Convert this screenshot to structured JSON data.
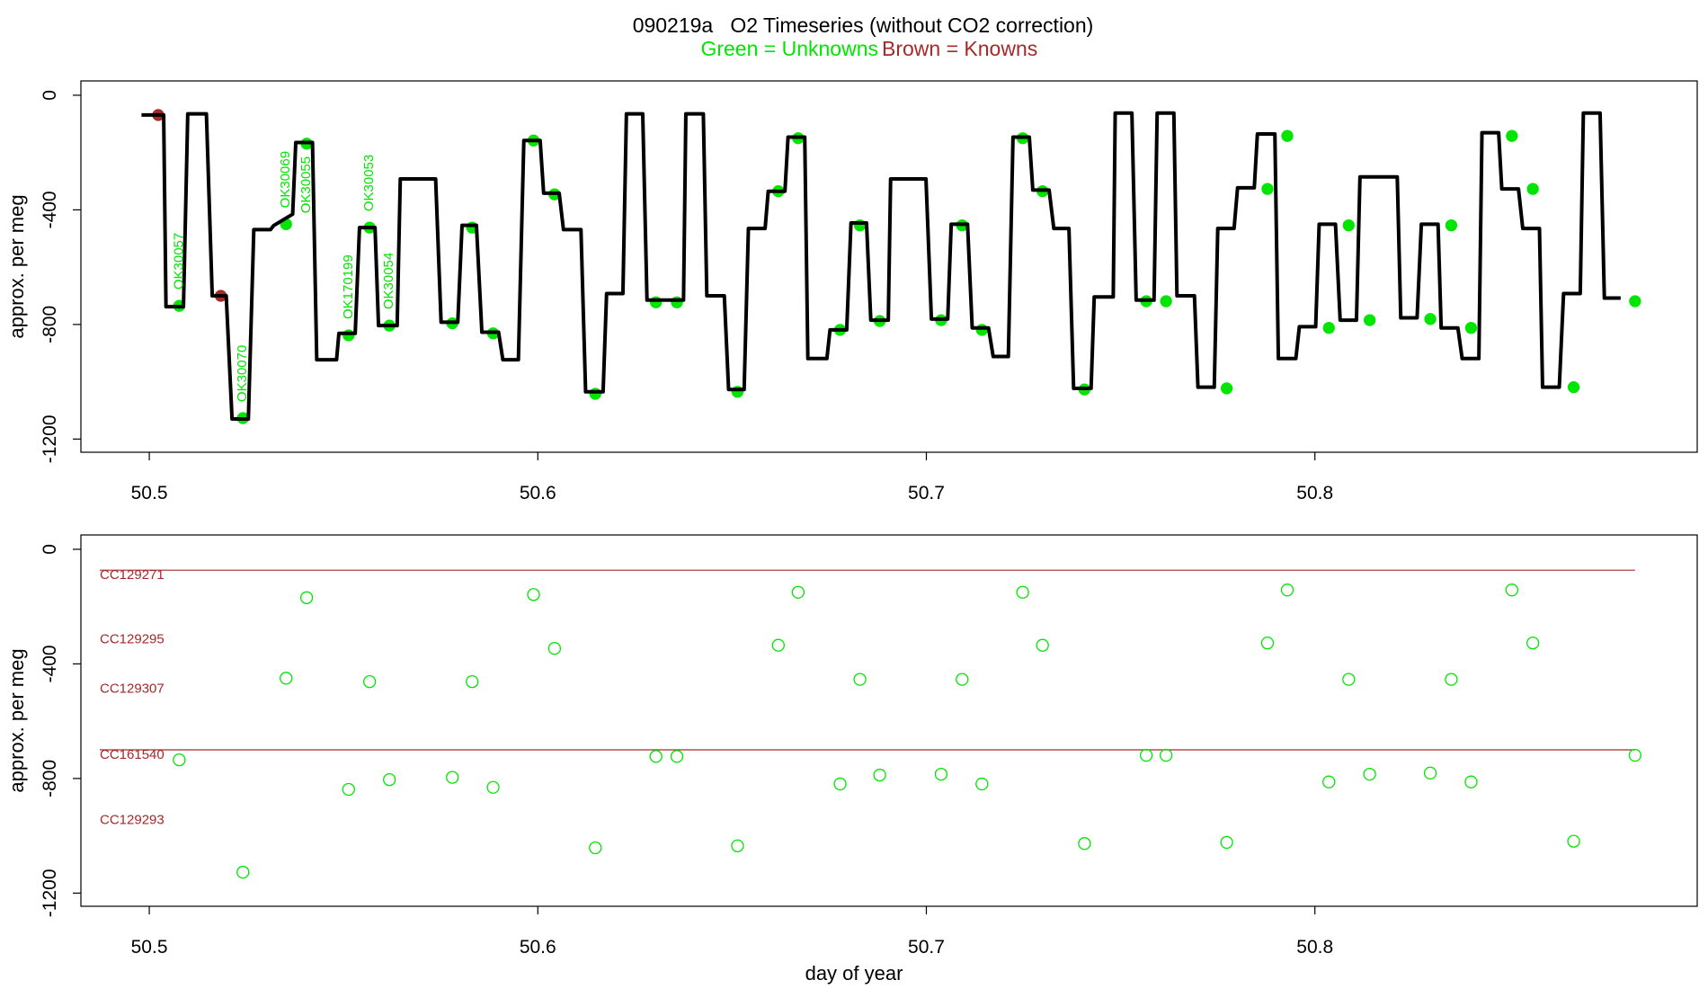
{
  "chart_data": [
    {
      "type": "line",
      "title": "090219a   O2 Timeseries (without CO2 correction)",
      "ylabel": "approx. per meg",
      "xlim": [
        50.4824,
        50.8984
      ],
      "ylim": [
        -1246,
        50
      ],
      "xticks": [
        50.5,
        50.6,
        50.7,
        50.8
      ],
      "yticks": [
        0,
        -400,
        -800,
        -1200
      ],
      "series": [
        {
          "style": "line",
          "color": "#000000",
          "x": [
            50.498,
            50.5037,
            50.5043,
            50.5088,
            50.5099,
            50.5147,
            50.5162,
            50.5198,
            50.5213,
            50.5255,
            50.5269,
            50.5312,
            50.532,
            50.5369,
            50.5377,
            50.542,
            50.5431,
            50.5482,
            50.5488,
            50.553,
            50.5541,
            50.5581,
            50.559,
            50.5638,
            50.5646,
            50.5737,
            50.5751,
            50.5794,
            50.5805,
            50.5842,
            50.5856,
            50.5899,
            50.591,
            50.595,
            50.5964,
            50.6006,
            50.6015,
            50.6055,
            50.6066,
            50.6111,
            50.6123,
            50.6168,
            50.6177,
            50.6219,
            50.6228,
            50.627,
            50.6281,
            50.6375,
            50.6381,
            50.6426,
            50.6435,
            50.648,
            50.6491,
            50.6531,
            50.6542,
            50.6585,
            50.6593,
            50.6636,
            50.6644,
            50.6687,
            50.6695,
            50.6744,
            50.6752,
            50.6795,
            50.6806,
            50.6846,
            50.6857,
            50.6902,
            50.6908,
            50.6999,
            50.7013,
            50.7055,
            50.7064,
            50.7106,
            50.7118,
            50.716,
            50.7172,
            50.7211,
            50.7223,
            50.7265,
            50.7274,
            50.7316,
            50.7328,
            50.7367,
            50.7379,
            50.7424,
            50.7432,
            50.7481,
            50.7486,
            50.7529,
            50.754,
            50.7586,
            50.7594,
            50.7637,
            50.7645,
            50.769,
            50.7699,
            50.7741,
            50.775,
            50.7792,
            50.7801,
            50.7844,
            50.7852,
            50.7897,
            50.7906,
            50.7951,
            50.796,
            50.8002,
            50.8011,
            50.8053,
            50.8065,
            50.8107,
            50.8116,
            50.8212,
            50.8221,
            50.8263,
            50.8274,
            50.8317,
            50.8325,
            50.8368,
            50.8379,
            50.8422,
            50.843,
            50.8473,
            50.8481,
            50.8524,
            50.8535,
            50.8578,
            50.8586,
            50.8629,
            50.864,
            50.8683,
            50.8691,
            50.8734,
            50.8745,
            50.8787
          ],
          "values": [
            -69,
            -69,
            -738,
            -738,
            -65,
            -65,
            -700,
            -700,
            -1130,
            -1130,
            -469,
            -469,
            -455,
            -415,
            -165,
            -165,
            -923,
            -923,
            -831,
            -831,
            -462,
            -462,
            -804,
            -804,
            -292,
            -292,
            -792,
            -792,
            -454,
            -454,
            -827,
            -827,
            -923,
            -923,
            -158,
            -158,
            -342,
            -342,
            -469,
            -469,
            -1035,
            -1035,
            -692,
            -692,
            -65,
            -65,
            -715,
            -715,
            -65,
            -65,
            -700,
            -700,
            -1027,
            -1027,
            -465,
            -465,
            -335,
            -335,
            -146,
            -146,
            -919,
            -919,
            -819,
            -819,
            -446,
            -446,
            -785,
            -785,
            -292,
            -292,
            -781,
            -781,
            -450,
            -450,
            -812,
            -812,
            -912,
            -912,
            -146,
            -146,
            -331,
            -331,
            -465,
            -465,
            -1023,
            -1023,
            -704,
            -704,
            -62,
            -62,
            -715,
            -715,
            -62,
            -62,
            -700,
            -700,
            -1019,
            -1019,
            -465,
            -465,
            -323,
            -323,
            -135,
            -135,
            -919,
            -919,
            -808,
            -808,
            -450,
            -450,
            -785,
            -785,
            -285,
            -285,
            -777,
            -777,
            -450,
            -450,
            -812,
            -812,
            -919,
            -919,
            -131,
            -131,
            -327,
            -327,
            -465,
            -465,
            -1019,
            -1019,
            -692,
            -692,
            -62,
            -62,
            -708,
            -708
          ]
        },
        {
          "style": "points",
          "name": "Green = Unknowns",
          "color": "#00e600",
          "x": [
            50.5077,
            50.5241,
            50.5352,
            50.5405,
            50.5513,
            50.5567,
            50.5618,
            50.578,
            50.5831,
            50.5885,
            50.5989,
            50.6043,
            50.6148,
            50.6304,
            50.6358,
            50.6514,
            50.6619,
            50.667,
            50.6778,
            50.6829,
            50.688,
            50.7038,
            50.7092,
            50.7143,
            50.7248,
            50.7299,
            50.7407,
            50.7566,
            50.7617,
            50.7773,
            50.7878,
            50.7929,
            50.8036,
            50.8087,
            50.8141,
            50.8297,
            50.8351,
            50.8402,
            50.8507,
            50.8561,
            50.8666,
            50.8824
          ],
          "values": [
            -735,
            -1127,
            -450,
            -169,
            -838,
            -462,
            -804,
            -796,
            -462,
            -831,
            -158,
            -346,
            -1042,
            -723,
            -723,
            -1035,
            -335,
            -150,
            -819,
            -454,
            -788,
            -785,
            -454,
            -819,
            -150,
            -335,
            -1027,
            -719,
            -719,
            -1023,
            -327,
            -142,
            -812,
            -454,
            -785,
            -781,
            -454,
            -812,
            -142,
            -327,
            -1019,
            -719
          ],
          "point_labels": [
            "OK30057",
            "OK30070",
            "OK30069",
            "OK30055",
            "OK170199",
            "OK30053",
            "OK30054",
            null,
            null,
            null,
            null,
            null,
            null,
            null,
            null,
            null,
            null,
            null,
            null,
            null,
            null,
            null,
            null,
            null,
            null,
            null,
            null,
            null,
            null,
            null,
            null,
            null,
            null,
            null,
            null,
            null,
            null,
            null,
            null,
            null,
            null,
            null
          ]
        },
        {
          "style": "points",
          "name": "Brown = Knowns",
          "color": "#a52a2a",
          "x": [
            50.5023,
            50.5184
          ],
          "values": [
            -69,
            -700
          ]
        }
      ]
    },
    {
      "type": "scatter",
      "xlabel": "day of year",
      "ylabel": "approx. per meg",
      "xlim": [
        50.4824,
        50.8984
      ],
      "ylim": [
        -1246,
        50
      ],
      "xticks": [
        50.5,
        50.6,
        50.7,
        50.8
      ],
      "yticks": [
        0,
        -400,
        -800,
        -1200
      ],
      "series": [
        {
          "color": "#00e600",
          "x": [
            50.5077,
            50.5241,
            50.5352,
            50.5405,
            50.5513,
            50.5567,
            50.5618,
            50.578,
            50.5831,
            50.5885,
            50.5989,
            50.6043,
            50.6148,
            50.6304,
            50.6358,
            50.6514,
            50.6619,
            50.667,
            50.6778,
            50.6829,
            50.688,
            50.7038,
            50.7092,
            50.7143,
            50.7248,
            50.7299,
            50.7407,
            50.7566,
            50.7617,
            50.7773,
            50.7878,
            50.7929,
            50.8036,
            50.8087,
            50.8141,
            50.8297,
            50.8351,
            50.8402,
            50.8507,
            50.8561,
            50.8666,
            50.8824
          ],
          "values": [
            -735,
            -1127,
            -450,
            -169,
            -838,
            -462,
            -804,
            -796,
            -462,
            -831,
            -158,
            -346,
            -1042,
            -723,
            -723,
            -1035,
            -335,
            -150,
            -819,
            -454,
            -788,
            -785,
            -454,
            -819,
            -150,
            -335,
            -1027,
            -719,
            -719,
            -1023,
            -327,
            -142,
            -812,
            -454,
            -785,
            -781,
            -454,
            -812,
            -142,
            -327,
            -1019,
            -719
          ]
        }
      ],
      "reference_lines": [
        {
          "label": "CC129271",
          "value": -73,
          "line": true,
          "color": "#a52a2a"
        },
        {
          "label": "CC129295",
          "value": -296,
          "line": false,
          "color": "#a52a2a"
        },
        {
          "label": "CC129307",
          "value": -469,
          "line": false,
          "color": "#a52a2a"
        },
        {
          "label": "CC161540",
          "value": -700,
          "line": true,
          "color": "#a52a2a"
        },
        {
          "label": "CC129293",
          "value": -927,
          "line": false,
          "color": "#a52a2a"
        }
      ]
    }
  ]
}
